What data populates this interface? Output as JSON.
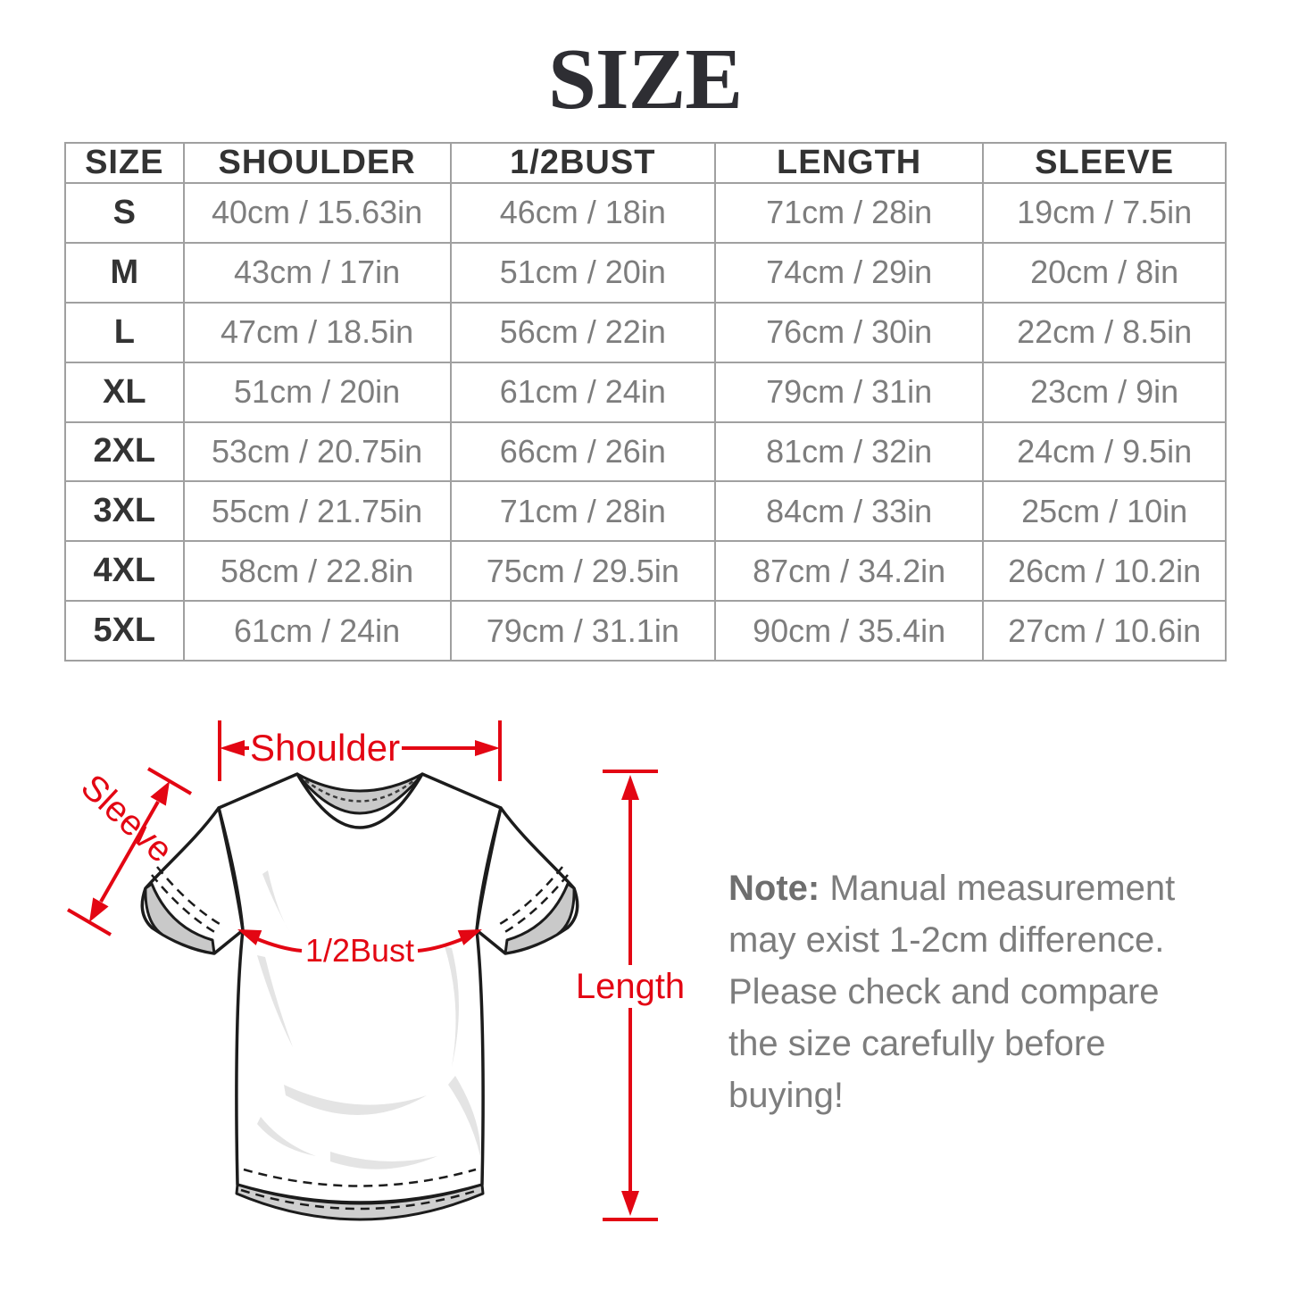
{
  "title": "SIZE",
  "table": {
    "headers": [
      "SIZE",
      "SHOULDER",
      "1/2BUST",
      "LENGTH",
      "SLEEVE"
    ],
    "rows": [
      [
        "S",
        "40cm / 15.63in",
        "46cm / 18in",
        "71cm / 28in",
        "19cm / 7.5in"
      ],
      [
        "M",
        "43cm / 17in",
        "51cm / 20in",
        "74cm / 29in",
        "20cm / 8in"
      ],
      [
        "L",
        "47cm / 18.5in",
        "56cm / 22in",
        "76cm / 30in",
        "22cm / 8.5in"
      ],
      [
        "XL",
        "51cm / 20in",
        "61cm / 24in",
        "79cm / 31in",
        "23cm / 9in"
      ],
      [
        "2XL",
        "53cm / 20.75in",
        "66cm / 26in",
        "81cm / 32in",
        "24cm / 9.5in"
      ],
      [
        "3XL",
        "55cm / 21.75in",
        "71cm / 28in",
        "84cm / 33in",
        "25cm / 10in"
      ],
      [
        "4XL",
        "58cm / 22.8in",
        "75cm / 29.5in",
        "87cm / 34.2in",
        "26cm / 10.2in"
      ],
      [
        "5XL",
        "61cm / 24in",
        "79cm / 31.1in",
        "90cm / 35.4in",
        "27cm / 10.6in"
      ]
    ]
  },
  "diagram": {
    "labels": {
      "shoulder": "Shoulder",
      "sleeve": "Sleeve",
      "half_bust": "1/2Bust",
      "length": "Length"
    }
  },
  "note": {
    "label": "Note:",
    "body": " Manual measurement may exist 1-2cm difference. Please check and compare the size carefully before buying!"
  },
  "colors": {
    "annotation_red": "#e30613",
    "grid": "#a0a0a0",
    "dark_text": "#333333",
    "muted_text": "#7d7d7d"
  }
}
